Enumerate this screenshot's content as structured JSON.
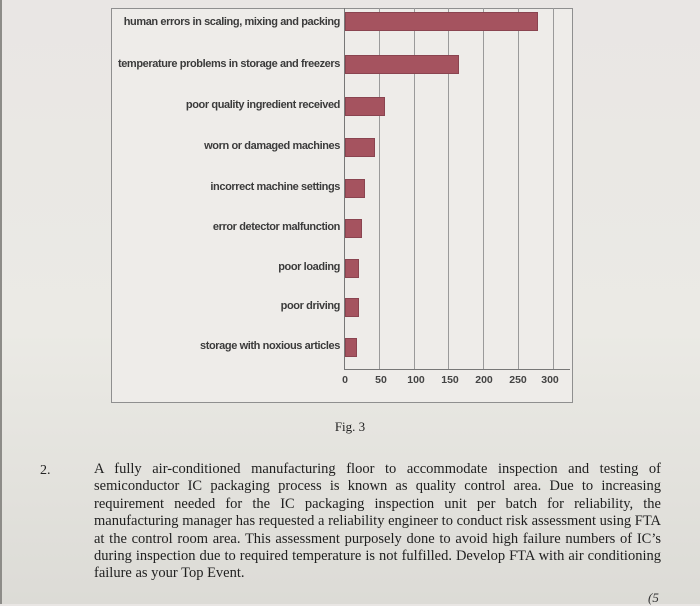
{
  "chart_data": {
    "type": "bar",
    "orientation": "horizontal",
    "title": "",
    "xlabel": "",
    "ylabel": "",
    "categories": [
      "human errors in scaling, mixing and packing",
      "temperature problems in storage and freezers",
      "poor quality ingredient received",
      "worn or damaged machines",
      "incorrect machine settings",
      "error detector malfunction",
      "poor loading",
      "poor driving",
      "storage with noxious articles"
    ],
    "values": [
      278,
      165,
      58,
      43,
      29,
      25,
      20,
      20,
      17
    ],
    "xlim": [
      0,
      300
    ],
    "xticks": [
      "0",
      "50",
      "100",
      "150",
      "200",
      "250",
      "300"
    ],
    "grid": "vertical",
    "bar_color": "#a5535f",
    "legend": "none"
  },
  "figure": {
    "caption": "Fig. 3"
  },
  "question": {
    "number": "2.",
    "text": "A fully air-conditioned manufacturing floor to accommodate inspection and testing of semiconductor IC packaging process is known as quality control area. Due to increasing requirement needed for the IC packaging inspection unit per batch for reliability, the manufacturing manager has requested a reliability engineer to conduct risk assessment using FTA at the control room area. This assessment purposely done to avoid high failure numbers of IC’s during inspection due to required temperature is not fulfilled. Develop FTA with air conditioning failure as your Top Event.",
    "marks_partial": "(5"
  }
}
